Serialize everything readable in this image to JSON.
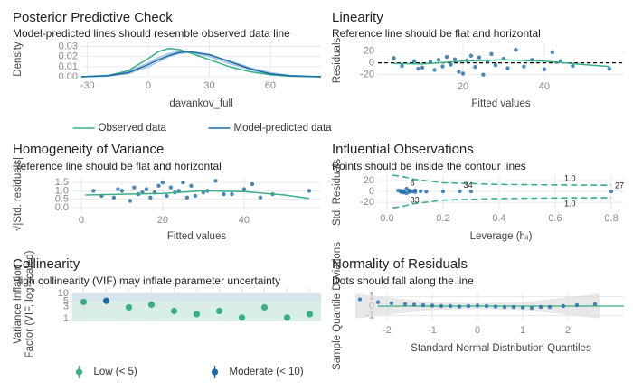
{
  "chart_data": [
    {
      "type": "line",
      "title": "Posterior Predictive Check",
      "subtitle": "Model-predicted lines should resemble observed data line",
      "xlabel": "davankov_full",
      "ylabel": "Density",
      "xlim": [
        -33,
        85
      ],
      "ylim": [
        0,
        0.035
      ],
      "xticks": [
        -30,
        0,
        30,
        60
      ],
      "yticks": [
        {
          "value": 0,
          "label": "0.00"
        },
        {
          "value": 0.01,
          "label": "0.01"
        },
        {
          "value": 0.02,
          "label": "0.02"
        },
        {
          "value": 0.03,
          "label": "0.03"
        }
      ],
      "grid": true,
      "series": [
        {
          "mode": "line",
          "color": "#a9c5e4",
          "x": [
            -33,
            -20,
            -10,
            0,
            5,
            10,
            15,
            20,
            30,
            40,
            50,
            60,
            70,
            85
          ],
          "values": [
            0,
            0.0015,
            0.005,
            0.014,
            0.019,
            0.023,
            0.025,
            0.024,
            0.02,
            0.013,
            0.007,
            0.003,
            0.001,
            0
          ]
        },
        {
          "mode": "line",
          "color": "#a9c5e4",
          "x": [
            -33,
            -20,
            -10,
            0,
            5,
            10,
            15,
            20,
            30,
            40,
            50,
            60,
            70,
            85
          ],
          "values": [
            0,
            0.0008,
            0.003,
            0.01,
            0.015,
            0.02,
            0.023,
            0.024,
            0.021,
            0.016,
            0.009,
            0.004,
            0.0012,
            0
          ]
        },
        {
          "name": "Observed data",
          "mode": "line",
          "color": "#3aaf85",
          "x": [
            -33,
            -20,
            -10,
            0,
            5,
            10,
            15,
            20,
            30,
            40,
            50,
            60,
            70,
            85
          ],
          "values": [
            0,
            0.001,
            0.006,
            0.018,
            0.025,
            0.028,
            0.027,
            0.024,
            0.017,
            0.01,
            0.005,
            0.002,
            0.0005,
            0
          ]
        },
        {
          "name": "Model-predicted data",
          "mode": "line",
          "color": "#1b6ca8",
          "x": [
            -33,
            -20,
            -10,
            0,
            5,
            10,
            15,
            20,
            30,
            40,
            50,
            60,
            70,
            85
          ],
          "values": [
            0,
            0.001,
            0.004,
            0.012,
            0.017,
            0.021,
            0.024,
            0.025,
            0.022,
            0.015,
            0.008,
            0.003,
            0.001,
            0
          ]
        }
      ]
    },
    {
      "type": "scatter",
      "title": "Linearity",
      "subtitle": "Reference line should be flat and horizontal",
      "xlabel": "Fitted values",
      "ylabel": "Residuals",
      "xlim": [
        -0.9,
        59.6
      ],
      "ylim": [
        -25,
        33
      ],
      "xticks": [
        20,
        40
      ],
      "yticks": [
        -20,
        0,
        20
      ],
      "grid": true,
      "hline": {
        "value": 0,
        "color": "#000000",
        "dashed": true
      },
      "series": [
        {
          "mode": "markers",
          "color": "#1b6ca8",
          "x": [
            3,
            5,
            8,
            9,
            10,
            12,
            13,
            14,
            15,
            16,
            17,
            18,
            19,
            20,
            21,
            22,
            23,
            24,
            25,
            26,
            27,
            28,
            30,
            31,
            33,
            35,
            37,
            40,
            42,
            44,
            47,
            56
          ],
          "values": [
            8,
            -5,
            3,
            -10,
            -8,
            2,
            -12,
            5,
            -6,
            10,
            -3,
            6,
            -15,
            -18,
            4,
            12,
            -7,
            9,
            -20,
            3,
            15,
            -4,
            7,
            -9,
            22,
            -6,
            5,
            -11,
            18,
            3,
            -5,
            -10
          ]
        },
        {
          "mode": "line",
          "color": "#3aaf85",
          "x": [
            3,
            10,
            20,
            30,
            40,
            50,
            56
          ],
          "values": [
            -1,
            -2,
            3,
            5,
            3,
            -3,
            -6
          ]
        }
      ]
    },
    {
      "type": "scatter",
      "title": "Homogeneity of Variance",
      "subtitle": "Reference line should be flat and horizontal",
      "xlabel": "Fitted values",
      "ylabel": "√|Std. residuals|",
      "xlim": [
        -2.2,
        58.9
      ],
      "ylim": [
        -0.22,
        1.83
      ],
      "xticks": [
        0,
        20,
        40
      ],
      "yticks": [
        {
          "value": 0,
          "label": "0.0"
        },
        {
          "value": 0.5,
          "label": "0.5"
        },
        {
          "value": 1,
          "label": "1.0"
        },
        {
          "value": 1.5,
          "label": "1.5"
        }
      ],
      "grid": true,
      "series": [
        {
          "mode": "markers",
          "color": "#1b6ca8",
          "x": [
            3,
            5,
            8,
            9,
            10,
            12,
            13,
            14,
            15,
            16,
            17,
            18,
            19,
            20,
            21,
            22,
            23,
            24,
            25,
            26,
            27,
            28,
            30,
            31,
            33,
            35,
            37,
            40,
            42,
            44,
            47,
            56
          ],
          "values": [
            1.0,
            0.7,
            0.6,
            1.1,
            1.0,
            0.4,
            1.2,
            0.8,
            0.9,
            1.1,
            0.6,
            0.9,
            1.3,
            1.5,
            0.7,
            1.2,
            0.9,
            1.0,
            1.5,
            0.6,
            1.3,
            0.7,
            0.9,
            1.0,
            1.6,
            0.8,
            0.8,
            1.1,
            1.4,
            0.6,
            0.8,
            1.0
          ]
        },
        {
          "mode": "line",
          "color": "#3aaf85",
          "x": [
            1,
            10,
            20,
            30,
            40,
            50,
            56
          ],
          "values": [
            0.75,
            0.8,
            0.85,
            1.0,
            0.95,
            0.75,
            0.55
          ]
        }
      ]
    },
    {
      "type": "scatter",
      "title": "Influential Observations",
      "subtitle": "Points should be inside the contour lines",
      "xlabel": "Leverage (hᵢᵢ)",
      "ylabel": "Std. Residuals",
      "xlim": [
        -0.032,
        0.845
      ],
      "ylim": [
        -33,
        30
      ],
      "xticks": [
        {
          "value": 0,
          "label": "0.0"
        },
        {
          "value": 0.2,
          "label": "0.2"
        },
        {
          "value": 0.4,
          "label": "0.4"
        },
        {
          "value": 0.6,
          "label": "0.6"
        },
        {
          "value": 0.8,
          "label": "0.8"
        }
      ],
      "yticks": [
        -20,
        0,
        20
      ],
      "grid": true,
      "series": [
        {
          "mode": "dashed",
          "color": "#3aaf85",
          "label": "1.0",
          "x": [
            0.02,
            0.05,
            0.1,
            0.2,
            0.4,
            0.6,
            0.8
          ],
          "values": [
            30,
            28,
            22,
            16,
            13,
            12,
            11.5
          ]
        },
        {
          "mode": "dashed",
          "color": "#3aaf85",
          "label": "1.0",
          "x": [
            0.02,
            0.05,
            0.1,
            0.2,
            0.4,
            0.6,
            0.8
          ],
          "values": [
            -30,
            -28,
            -22,
            -16,
            -13,
            -12,
            -11.5
          ]
        },
        {
          "mode": "markers",
          "color": "#1b6ca8",
          "x": [
            0.04,
            0.05,
            0.05,
            0.06,
            0.06,
            0.07,
            0.07,
            0.08,
            0.08,
            0.09,
            0.1,
            0.1,
            0.12,
            0.14,
            0.2,
            0.26,
            0.3,
            0.8
          ],
          "values": [
            2,
            -1,
            1,
            -2,
            0.5,
            5,
            -3,
            1.5,
            -0.5,
            0,
            2,
            -1,
            0.5,
            -0.3,
            0.2,
            0.4,
            0.1,
            0.3
          ],
          "point_labels": [
            null,
            null,
            null,
            null,
            null,
            "6",
            "33",
            null,
            null,
            null,
            null,
            null,
            null,
            null,
            null,
            "34",
            null,
            "27"
          ]
        }
      ]
    },
    {
      "type": "dot",
      "title": "Collinearity",
      "subtitle": "High collinearity (VIF) may inflate parameter uncertainty",
      "ylabel": [
        "Variance Inflation",
        "Factor (VIF, log-scaled)"
      ],
      "log": true,
      "ylim": [
        0.77,
        18
      ],
      "yticks": [
        1,
        3,
        5,
        10
      ],
      "grid": true,
      "categories": [
        null,
        null,
        null,
        null,
        null,
        null,
        null,
        null,
        null,
        null,
        null
      ],
      "bands": [
        {
          "from": 0.77,
          "to": 5,
          "color": "#d8efe5"
        },
        {
          "from": 5,
          "to": 10,
          "color": "#d6e4f1"
        }
      ],
      "series": [
        {
          "name": "Low (< 5)",
          "mode": "markers",
          "color": "#3aaf85",
          "values": [
            4.6,
            null,
            2.8,
            3.6,
            2.0,
            1.5,
            2.0,
            1.09,
            2.8,
            1.09,
            1.5
          ]
        },
        {
          "name": "Moderate (< 10)",
          "mode": "markers",
          "color": "#1b6ca8",
          "values": [
            null,
            5.1,
            null,
            null,
            null,
            null,
            null,
            null,
            null,
            null,
            null
          ]
        }
      ]
    },
    {
      "type": "scatter",
      "title": "Normality of Residuals",
      "subtitle": "Dots should fall along the line",
      "xlabel": "Standard Normal Distribution Quantiles",
      "ylabel": "Sample Quantile Deviations",
      "xlim": [
        -2.2,
        3.24
      ],
      "ylim": [
        -1.6,
        1.6
      ],
      "xticks": [
        -2,
        -1,
        0,
        1,
        2
      ],
      "yticks": [
        -1,
        0,
        1
      ],
      "grid": true,
      "hline": {
        "value": 0,
        "color": "#3aaf85",
        "dashed": false
      },
      "series": [
        {
          "mode": "ribbon",
          "color": "#d9d9d9",
          "x": [
            -2.7,
            -1,
            0,
            1,
            2.7
          ],
          "upper": [
            1.3,
            0.4,
            0.3,
            0.4,
            1.3
          ],
          "lower": [
            -1.3,
            -0.4,
            -0.3,
            -0.4,
            -1.3
          ]
        },
        {
          "mode": "markers",
          "color": "#1b6ca8",
          "x": [
            -2.6,
            -2.2,
            -1.9,
            -1.6,
            -1.4,
            -1.2,
            -1,
            -0.8,
            -0.6,
            -0.4,
            -0.2,
            0,
            0.2,
            0.4,
            0.6,
            0.8,
            1,
            1.2,
            1.4,
            1.6,
            1.9,
            2.2,
            2.6
          ],
          "values": [
            0.7,
            0.4,
            0.3,
            0.2,
            0.15,
            0.1,
            0.05,
            0,
            0,
            -0.05,
            0,
            0.05,
            0,
            -0.05,
            -0.1,
            -0.1,
            -0.15,
            -0.2,
            -0.1,
            -0.1,
            0,
            0.1,
            0.2
          ]
        }
      ]
    }
  ]
}
